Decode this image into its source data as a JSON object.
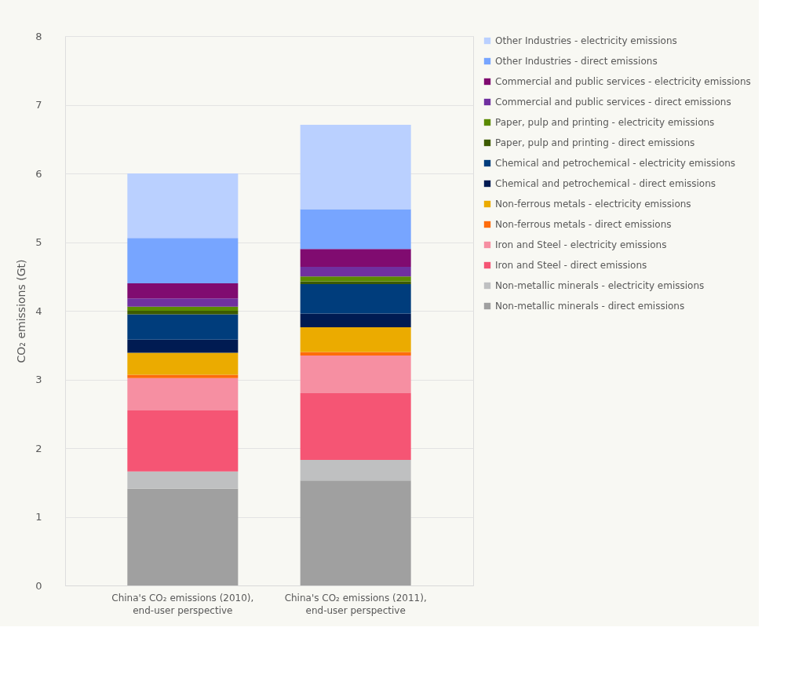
{
  "chart_data": {
    "type": "bar",
    "stacked": true,
    "ylabel": "CO₂ emissions (Gt)",
    "categories": [
      "China's CO₂ emissions (2010), end-user perspective",
      "China's CO₂ emissions (2011), end-user perspective"
    ],
    "series": [
      {
        "name": "Non-metallic minerals - direct emissions",
        "color": "#a0a0a0",
        "values": [
          1.41,
          1.53
        ]
      },
      {
        "name": "Non-metallic minerals - electricity emissions",
        "color": "#bfc0c1",
        "values": [
          0.25,
          0.3
        ]
      },
      {
        "name": "Iron and Steel - direct emissions",
        "color": "#f55574",
        "values": [
          0.89,
          0.97
        ]
      },
      {
        "name": "Iron and Steel - electricity emissions",
        "color": "#f68fa2",
        "values": [
          0.47,
          0.55
        ]
      },
      {
        "name": "Non-ferrous metals  - direct emissions",
        "color": "#fe6c0b",
        "values": [
          0.05,
          0.05
        ]
      },
      {
        "name": "Non-ferrous metals - electricity emissions",
        "color": "#ebab00",
        "values": [
          0.32,
          0.36
        ]
      },
      {
        "name": "Chemical and petrochemical - direct emissions",
        "color": "#001b52",
        "values": [
          0.19,
          0.2
        ]
      },
      {
        "name": "Chemical and petrochemical - electricity emissions",
        "color": "#003d7c",
        "values": [
          0.37,
          0.43
        ]
      },
      {
        "name": "Paper, pulp and printing - direct emissions",
        "color": "#3d5b00",
        "values": [
          0.05,
          0.04
        ]
      },
      {
        "name": "Paper, pulp and printing - electricity emissions",
        "color": "#5a8a00",
        "values": [
          0.06,
          0.07
        ]
      },
      {
        "name": "Commercial and public services - direct emissions",
        "color": "#7030a0",
        "values": [
          0.12,
          0.14
        ]
      },
      {
        "name": "Commercial and public services - electricity emissions",
        "color": "#800b70",
        "values": [
          0.22,
          0.26
        ]
      },
      {
        "name": "Other Industries - direct emissions",
        "color": "#77a5ff",
        "values": [
          0.66,
          0.58
        ]
      },
      {
        "name": "Other Industries - electricity emissions",
        "color": "#bad0ff",
        "values": [
          0.94,
          1.23
        ]
      }
    ],
    "ylim": [
      0,
      8
    ],
    "yticks": [
      0,
      1,
      2,
      3,
      4,
      5,
      6,
      7,
      8
    ],
    "grid": "y",
    "legend": "right"
  }
}
